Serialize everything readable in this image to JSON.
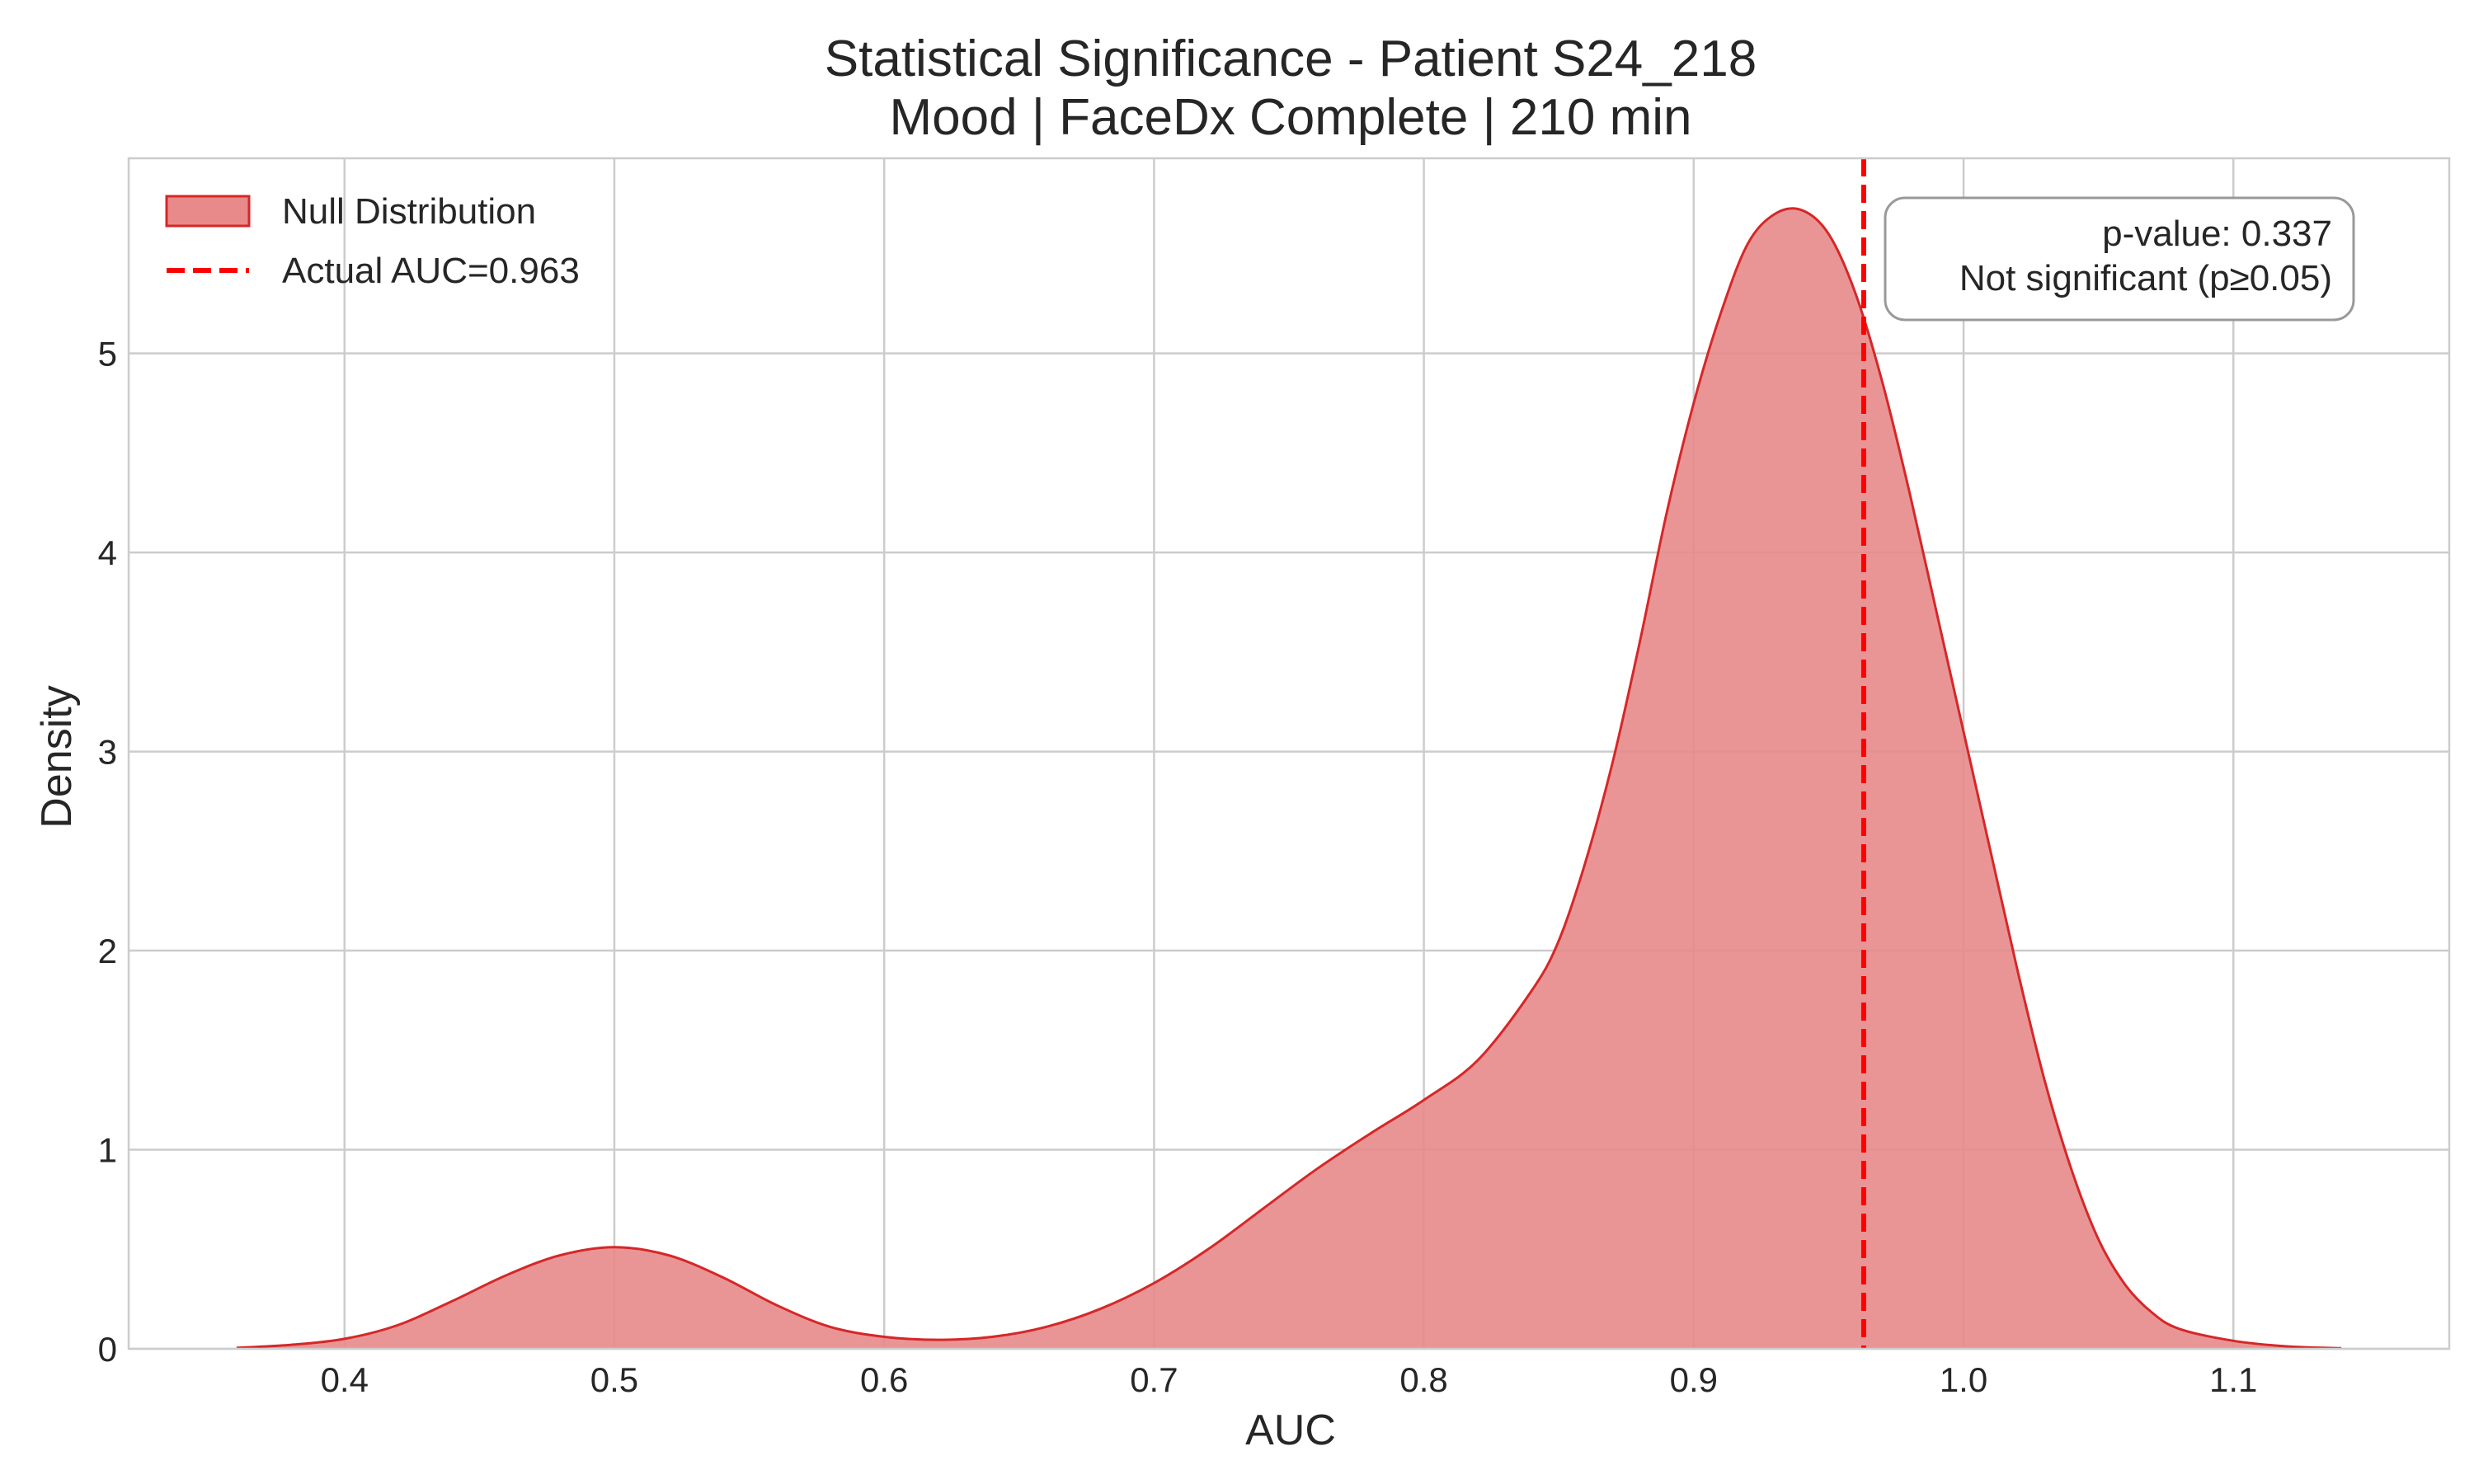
{
  "chart_data": {
    "type": "area",
    "title": "Statistical Significance - Patient S24_218",
    "subtitle": "Mood | FaceDx Complete | 210 min",
    "xlabel": "AUC",
    "ylabel": "Density",
    "xlim": [
      0.32,
      1.18
    ],
    "ylim": [
      0,
      5.98
    ],
    "xticks": [
      "0.4",
      "0.5",
      "0.6",
      "0.7",
      "0.8",
      "0.9",
      "1.0",
      "1.1"
    ],
    "yticks": [
      "0",
      "1",
      "2",
      "3",
      "4",
      "5"
    ],
    "grid": true,
    "legend_position": "top-left",
    "series": [
      {
        "name": "Null Distribution",
        "kind": "kde-area",
        "fill_color": "#e88a8a",
        "line_color": "#d62728",
        "x": [
          0.36,
          0.38,
          0.4,
          0.42,
          0.44,
          0.46,
          0.48,
          0.5,
          0.52,
          0.54,
          0.56,
          0.58,
          0.6,
          0.62,
          0.64,
          0.66,
          0.68,
          0.7,
          0.72,
          0.74,
          0.76,
          0.78,
          0.8,
          0.82,
          0.84,
          0.85,
          0.86,
          0.87,
          0.88,
          0.89,
          0.9,
          0.91,
          0.92,
          0.93,
          0.94,
          0.95,
          0.96,
          0.97,
          0.98,
          0.99,
          1.0,
          1.01,
          1.02,
          1.03,
          1.04,
          1.05,
          1.06,
          1.07,
          1.08,
          1.1,
          1.12,
          1.14
        ],
        "y": [
          0.005,
          0.02,
          0.05,
          0.12,
          0.24,
          0.37,
          0.47,
          0.51,
          0.47,
          0.36,
          0.22,
          0.11,
          0.06,
          0.045,
          0.06,
          0.11,
          0.2,
          0.33,
          0.5,
          0.7,
          0.9,
          1.08,
          1.25,
          1.45,
          1.8,
          2.05,
          2.45,
          2.95,
          3.55,
          4.2,
          4.75,
          5.2,
          5.55,
          5.7,
          5.72,
          5.6,
          5.3,
          4.85,
          4.3,
          3.7,
          3.1,
          2.5,
          1.9,
          1.35,
          0.9,
          0.55,
          0.32,
          0.18,
          0.1,
          0.04,
          0.012,
          0.003
        ]
      },
      {
        "name": "Actual AUC=0.963",
        "kind": "vline",
        "x": 0.963,
        "line_color": "#ff0000",
        "style": "dashed"
      }
    ],
    "annotation": {
      "line1": "p-value: 0.337",
      "line2": "Not significant (p≥0.05)",
      "position": "top-right"
    }
  }
}
